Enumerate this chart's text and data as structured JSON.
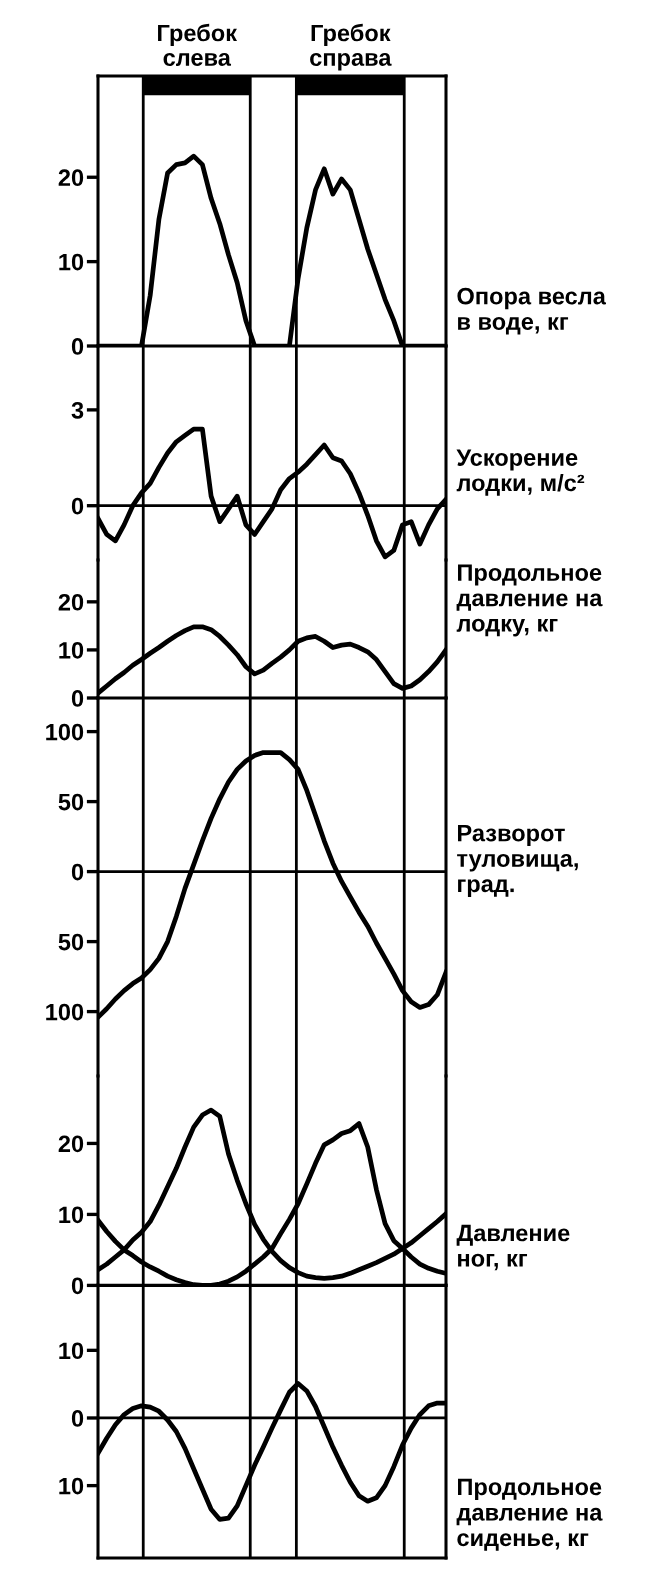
{
  "chart_data": [
    {
      "type": "line",
      "title": "Опора весла\nв воде, кг",
      "categories": [
        null,
        null,
        null,
        null,
        null,
        null,
        null,
        null,
        null,
        null,
        null,
        null,
        null,
        null,
        null,
        null,
        null,
        null,
        null,
        null,
        null,
        null,
        null,
        null,
        null,
        null,
        null,
        null,
        null,
        null,
        null,
        null,
        null,
        null,
        null,
        null,
        null,
        null,
        null,
        null,
        null
      ],
      "series": [
        {
          "color": "#000000",
          "values": [
            0,
            0,
            0,
            0,
            0,
            0,
            6,
            15,
            20.5,
            21.5,
            21.7,
            22.5,
            21.5,
            17.5,
            14.5,
            10.8,
            7.5,
            3,
            0,
            0,
            0,
            0,
            0,
            8,
            14,
            18.5,
            21,
            18,
            19.8,
            18.5,
            15,
            11.5,
            8.5,
            5.5,
            3,
            0,
            0,
            0,
            0,
            0,
            0
          ]
        }
      ],
      "ylim": [
        0,
        32
      ],
      "yticks": [
        0,
        10,
        20
      ],
      "tick_labels": "y",
      "annotations": [
        "Гребок\nслева",
        "Гребок\nсправа"
      ]
    },
    {
      "type": "line",
      "title": "Ускорение\nлодки, м/с²",
      "categories": [
        null,
        null,
        null,
        null,
        null,
        null,
        null,
        null,
        null,
        null,
        null,
        null,
        null,
        null,
        null,
        null,
        null,
        null,
        null,
        null,
        null,
        null,
        null,
        null,
        null,
        null,
        null,
        null,
        null,
        null,
        null,
        null,
        null,
        null,
        null,
        null,
        null,
        null,
        null,
        null,
        null
      ],
      "series": [
        {
          "color": "#000000",
          "values": [
            -0.4,
            -0.9,
            -1.1,
            -0.6,
            0,
            0.4,
            0.7,
            1.2,
            1.65,
            2.0,
            2.2,
            2.4,
            2.4,
            0.3,
            -0.5,
            -0.1,
            0.3,
            -0.6,
            -0.9,
            -0.5,
            -0.1,
            0.5,
            0.85,
            1.05,
            1.3,
            1.6,
            1.9,
            1.5,
            1.4,
            1.0,
            0.4,
            -0.3,
            -1.1,
            -1.6,
            -1.4,
            -0.6,
            -0.5,
            -1.2,
            -0.6,
            -0.1,
            0.2
          ]
        }
      ],
      "ylim": [
        -1.7,
        5
      ],
      "yticks": [
        0,
        3
      ],
      "tick_labels": "y",
      "ref_lines": [
        {
          "axis": "y",
          "value": 0
        }
      ]
    },
    {
      "type": "line",
      "title": "Продольное\nдавление на\nлодку, кг",
      "categories": [
        null,
        null,
        null,
        null,
        null,
        null,
        null,
        null,
        null,
        null,
        null,
        null,
        null,
        null,
        null,
        null,
        null,
        null,
        null,
        null,
        null,
        null,
        null,
        null,
        null,
        null,
        null,
        null,
        null,
        null,
        null,
        null,
        null,
        null,
        null,
        null,
        null,
        null,
        null,
        null,
        null
      ],
      "series": [
        {
          "color": "#000000",
          "values": [
            1,
            2.5,
            4,
            5.3,
            6.8,
            8,
            9.3,
            10.5,
            11.8,
            13,
            14,
            14.8,
            14.8,
            14.2,
            12.8,
            11,
            9,
            6.5,
            5,
            5.8,
            7.2,
            8.5,
            10,
            11.8,
            12.5,
            12.8,
            11.8,
            10.5,
            11,
            11.2,
            10.5,
            9.6,
            8,
            5.5,
            3,
            2,
            2.5,
            3.8,
            5.5,
            7.5,
            10
          ]
        }
      ],
      "ylim": [
        0,
        28.7
      ],
      "yticks": [
        0,
        10,
        20
      ],
      "tick_labels": "y"
    },
    {
      "type": "line",
      "title": "Разворот\nтуловища,\nград.",
      "categories": [
        null,
        null,
        null,
        null,
        null,
        null,
        null,
        null,
        null,
        null,
        null,
        null,
        null,
        null,
        null,
        null,
        null,
        null,
        null,
        null,
        null,
        null,
        null,
        null,
        null,
        null,
        null,
        null,
        null,
        null,
        null,
        null,
        null,
        null,
        null,
        null,
        null,
        null,
        null,
        null,
        null
      ],
      "series": [
        {
          "color": "#000000",
          "values": [
            -104,
            -98,
            -91,
            -85,
            -80,
            -76,
            -70,
            -62,
            -50,
            -32,
            -12,
            5,
            22,
            38,
            52,
            64,
            73,
            79,
            83,
            85,
            85,
            85,
            80,
            73,
            58,
            40,
            22,
            6,
            -7,
            -18,
            -29,
            -39,
            -51,
            -62,
            -73,
            -85,
            -93,
            -97,
            -95,
            -88,
            -72
          ]
        }
      ],
      "ylim": [
        -146,
        124
      ],
      "yticks": [
        {
          "value": -100,
          "label": "100"
        },
        {
          "value": -50,
          "label": "50"
        },
        0,
        50,
        100
      ],
      "tick_labels": "y",
      "ref_lines": [
        {
          "axis": "y",
          "value": 0
        }
      ]
    },
    {
      "type": "line",
      "title": "Давление\nног, кг",
      "categories": [
        null,
        null,
        null,
        null,
        null,
        null,
        null,
        null,
        null,
        null,
        null,
        null,
        null,
        null,
        null,
        null,
        null,
        null,
        null,
        null,
        null,
        null,
        null,
        null,
        null,
        null,
        null,
        null,
        null,
        null,
        null,
        null,
        null,
        null,
        null,
        null,
        null,
        null,
        null,
        null,
        null
      ],
      "series": [
        {
          "color": "#000000",
          "values": [
            2.2,
            3,
            4,
            5,
            6.4,
            7.5,
            9,
            11.3,
            13.9,
            16.5,
            19.5,
            22.3,
            24,
            24.7,
            23.8,
            18.5,
            14.8,
            11.5,
            8.6,
            6.5,
            4.8,
            3.5,
            2.5,
            1.8,
            1.3,
            1.1,
            1.0,
            1.1,
            1.3,
            1.7,
            2.2,
            2.7,
            3.2,
            3.8,
            4.4,
            5.2,
            6,
            7,
            8,
            9,
            10.1
          ]
        },
        {
          "color": "#000000",
          "values": [
            9.2,
            7.6,
            6.2,
            5,
            4.2,
            3.3,
            2.6,
            2,
            1.3,
            0.8,
            0.4,
            0.1,
            0,
            0,
            0.2,
            0.6,
            1.2,
            2,
            3,
            4,
            5.2,
            7.3,
            9.3,
            11.5,
            14.3,
            17.2,
            19.8,
            20.5,
            21.4,
            21.8,
            22.8,
            19.5,
            13.5,
            8.7,
            6.3,
            5.2,
            4,
            3,
            2.4,
            2,
            1.7
          ]
        }
      ],
      "ylim": [
        0,
        29.5
      ],
      "yticks": [
        0,
        10,
        20
      ],
      "tick_labels": "y"
    },
    {
      "type": "line",
      "title": "Продольное\nдавление на\nсиденье, кг",
      "categories": [
        null,
        null,
        null,
        null,
        null,
        null,
        null,
        null,
        null,
        null,
        null,
        null,
        null,
        null,
        null,
        null,
        null,
        null,
        null,
        null,
        null,
        null,
        null,
        null,
        null,
        null,
        null,
        null,
        null,
        null,
        null,
        null,
        null,
        null,
        null,
        null,
        null,
        null,
        null,
        null,
        null
      ],
      "series": [
        {
          "color": "#000000",
          "values": [
            -5.2,
            -3,
            -1,
            0.5,
            1.4,
            1.8,
            1.6,
            1,
            -0.3,
            -2,
            -4.5,
            -7.5,
            -10.5,
            -13.5,
            -15,
            -14.8,
            -13,
            -10,
            -7,
            -4.3,
            -1.5,
            1.2,
            3.8,
            5.1,
            4,
            1.7,
            -1.3,
            -4.3,
            -7,
            -9.5,
            -11.5,
            -12.3,
            -11.8,
            -10,
            -7.2,
            -4,
            -1.5,
            0.5,
            1.8,
            2.2,
            2.2
          ]
        }
      ],
      "ylim": [
        -20.7,
        19.6
      ],
      "yticks": [
        {
          "value": -10,
          "label": "10"
        },
        0,
        10
      ],
      "tick_labels": "y",
      "ref_lines": [
        {
          "axis": "y",
          "value": 0
        }
      ]
    }
  ]
}
